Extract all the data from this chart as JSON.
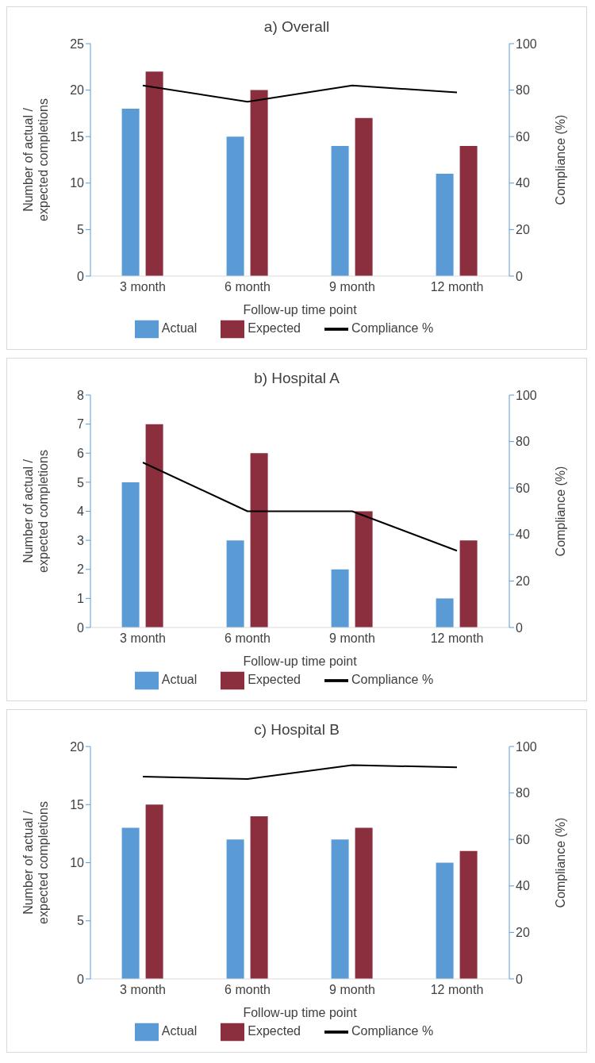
{
  "chart_data": [
    {
      "type": "bar",
      "title": "a) Overall",
      "xlabel": "Follow-up time point",
      "ylabel": "Number of actual / expected completions",
      "y2label": "Compliance (%)",
      "categories": [
        "3 month",
        "6 month",
        "9 month",
        "12 month"
      ],
      "ylim": [
        0,
        25
      ],
      "yticks": [
        0,
        5,
        10,
        15,
        20,
        25
      ],
      "y2lim": [
        0,
        100
      ],
      "y2ticks": [
        0,
        20,
        40,
        60,
        80,
        100
      ],
      "legend": "bottom",
      "series": [
        {
          "name": "Actual",
          "color": "#5b9bd5",
          "values": [
            18,
            15,
            14,
            11
          ]
        },
        {
          "name": "Expected",
          "color": "#8b2e3e",
          "values": [
            22,
            20,
            17,
            14
          ]
        },
        {
          "name": "Compliance %",
          "type": "line",
          "axis": "y2",
          "color": "#000000",
          "marker": "none",
          "values": [
            82,
            75,
            82,
            79
          ]
        }
      ]
    },
    {
      "type": "bar",
      "title": "b) Hospital A",
      "xlabel": "Follow-up time point",
      "ylabel": "Number of actual / expected completions",
      "y2label": "Compliance (%)",
      "categories": [
        "3 month",
        "6 month",
        "9 month",
        "12 month"
      ],
      "ylim": [
        0,
        8
      ],
      "yticks": [
        0,
        1,
        2,
        3,
        4,
        5,
        6,
        7,
        8
      ],
      "y2lim": [
        0,
        100
      ],
      "y2ticks": [
        0,
        20,
        40,
        60,
        80,
        100
      ],
      "legend": "bottom",
      "series": [
        {
          "name": "Actual",
          "color": "#5b9bd5",
          "values": [
            5,
            3,
            2,
            1
          ]
        },
        {
          "name": "Expected",
          "color": "#8b2e3e",
          "values": [
            7,
            6,
            4,
            3
          ]
        },
        {
          "name": "Compliance %",
          "type": "line",
          "axis": "y2",
          "color": "#000000",
          "marker": "none",
          "values": [
            71,
            50,
            50,
            33
          ]
        }
      ]
    },
    {
      "type": "bar",
      "title": "c) Hospital B",
      "xlabel": "Follow-up time point",
      "ylabel": "Number of actual / expected completions",
      "y2label": "Compliance (%)",
      "categories": [
        "3 month",
        "6 month",
        "9 month",
        "12 month"
      ],
      "ylim": [
        0,
        20
      ],
      "yticks": [
        0,
        5,
        10,
        15,
        20
      ],
      "y2lim": [
        0,
        100
      ],
      "y2ticks": [
        0,
        20,
        40,
        60,
        80,
        100
      ],
      "legend": "bottom",
      "series": [
        {
          "name": "Actual",
          "color": "#5b9bd5",
          "values": [
            13,
            12,
            12,
            10
          ]
        },
        {
          "name": "Expected",
          "color": "#8b2e3e",
          "values": [
            15,
            14,
            13,
            11
          ]
        },
        {
          "name": "Compliance %",
          "type": "line",
          "axis": "y2",
          "color": "#000000",
          "marker": "none",
          "values": [
            87,
            86,
            92,
            91
          ]
        }
      ]
    }
  ]
}
